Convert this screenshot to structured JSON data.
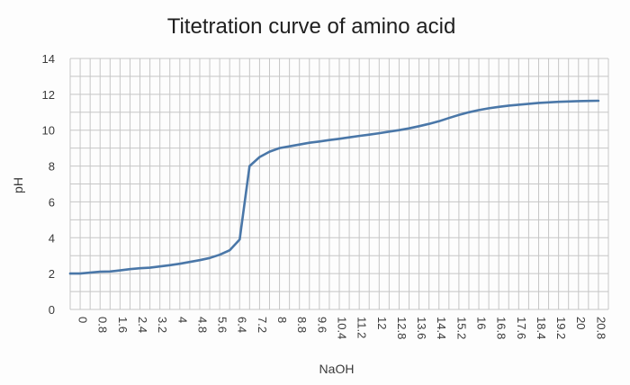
{
  "chart_data": {
    "type": "line",
    "title": "Titetration curve of amino acid",
    "xlabel": "NaOH",
    "ylabel": "pH",
    "ylim": [
      0,
      14
    ],
    "yticks": [
      "0",
      "2",
      "4",
      "6",
      "8",
      "10",
      "12",
      "14"
    ],
    "grid": true,
    "legend": "none",
    "x_tick_labels": [
      "0",
      "0.8",
      "1.6",
      "2.4",
      "3.2",
      "4",
      "4.8",
      "5.6",
      "6.4",
      "7.2",
      "8",
      "8.8",
      "9.6",
      "10.4",
      "11.2",
      "12",
      "12.8",
      "13.6",
      "14.4",
      "15.2",
      "16",
      "16.8",
      "17.6",
      "18.4",
      "19.2",
      "20",
      "20.8"
    ],
    "series": [
      {
        "color": "#4a77a8",
        "x": [
          0,
          0.4,
          0.8,
          1.2,
          1.6,
          2.0,
          2.4,
          2.8,
          3.2,
          3.6,
          4.0,
          4.4,
          4.8,
          5.2,
          5.6,
          6.0,
          6.4,
          6.8,
          7.2,
          7.6,
          8.0,
          8.4,
          8.8,
          9.2,
          9.6,
          10.0,
          10.4,
          10.8,
          11.2,
          11.6,
          12.0,
          12.4,
          12.8,
          13.2,
          13.6,
          14.0,
          14.4,
          14.8,
          15.2,
          15.6,
          16.0,
          16.4,
          16.8,
          17.2,
          17.6,
          18.0,
          18.4,
          18.8,
          19.2,
          19.6,
          20.0,
          20.4,
          20.8,
          21.2
        ],
        "y": [
          2.0,
          2.0,
          2.05,
          2.1,
          2.12,
          2.18,
          2.25,
          2.3,
          2.33,
          2.4,
          2.47,
          2.55,
          2.65,
          2.75,
          2.87,
          3.05,
          3.3,
          3.9,
          8.0,
          8.5,
          8.8,
          9.0,
          9.1,
          9.2,
          9.3,
          9.37,
          9.45,
          9.52,
          9.6,
          9.68,
          9.75,
          9.83,
          9.92,
          10.0,
          10.1,
          10.22,
          10.35,
          10.5,
          10.68,
          10.85,
          11.0,
          11.12,
          11.22,
          11.3,
          11.37,
          11.42,
          11.47,
          11.52,
          11.55,
          11.58,
          11.6,
          11.62,
          11.63,
          11.64
        ]
      }
    ]
  }
}
